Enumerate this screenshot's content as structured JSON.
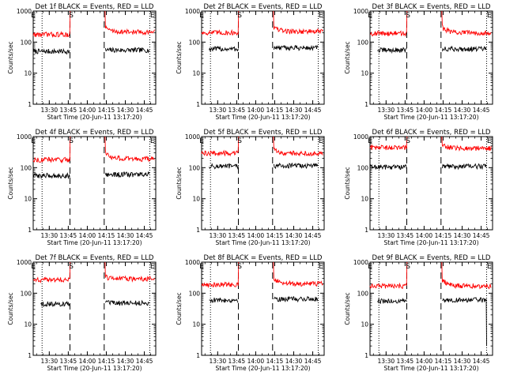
{
  "chart_data": [
    {
      "type": "line",
      "title": "Det 1f BLACK = Events, RED = LLD",
      "xlabel": "Start Time (20-Jun-11 13:17:20)",
      "ylabel": "Counts/sec",
      "yscale": "log",
      "ylim": [
        1,
        1000
      ],
      "y_ticks": [
        "1",
        "10",
        "100",
        "1000"
      ],
      "x_ticks": [
        "13:30",
        "13:45",
        "14:00",
        "14:15",
        "14:30",
        "14:45"
      ],
      "xlim": [
        "13:17:20",
        "14:54:00"
      ],
      "x_tick_minutes": [
        12.67,
        27.67,
        42.67,
        57.67,
        72.67,
        87.67
      ],
      "xlim_minutes": [
        0,
        96.67
      ],
      "markers": [
        {
          "label": "E",
          "minute": 0
        },
        {
          "label": "S",
          "minute": 30
        },
        {
          "label": "E",
          "minute": 94
        }
      ],
      "dotted_lines_minutes": [
        7,
        92
      ],
      "dashed_lines_minutes": [
        29,
        56
      ],
      "series": [
        {
          "name": "BLACK = Events",
          "color": "#000000",
          "segments": [
            {
              "x_start": 0,
              "x_end": 29,
              "level": 50,
              "spike_at_start": 10
            },
            {
              "x_start": 57,
              "x_end": 92,
              "level": 55
            }
          ]
        },
        {
          "name": "RED = LLD",
          "color": "#ff0000",
          "segments": [
            {
              "x_start": 0,
              "x_end": 29,
              "level": 175
            },
            {
              "x_start": 57,
              "x_end": 96,
              "level": 210,
              "start_level": 300
            }
          ]
        }
      ]
    },
    {
      "type": "line",
      "title": "Det 2f BLACK = Events, RED = LLD",
      "xlabel": "Start Time (20-Jun-11 13:17:20)",
      "ylabel": "Counts/sec",
      "yscale": "log",
      "ylim": [
        1,
        1000
      ],
      "y_ticks": [
        "1",
        "10",
        "100",
        "1000"
      ],
      "x_ticks": [
        "13:30",
        "13:45",
        "14:00",
        "14:15",
        "14:30",
        "14:45"
      ],
      "xlim": [
        "13:17:20",
        "14:54:00"
      ],
      "x_tick_minutes": [
        12.67,
        27.67,
        42.67,
        57.67,
        72.67,
        87.67
      ],
      "xlim_minutes": [
        0,
        96.67
      ],
      "markers": [
        {
          "label": "E",
          "minute": 0
        },
        {
          "label": "S",
          "minute": 30
        },
        {
          "label": "E",
          "minute": 94
        }
      ],
      "dotted_lines_minutes": [
        7,
        92
      ],
      "dashed_lines_minutes": [
        29,
        56
      ],
      "series": [
        {
          "name": "BLACK = Events",
          "color": "#000000",
          "segments": [
            {
              "x_start": 6,
              "x_end": 29,
              "level": 60
            },
            {
              "x_start": 57,
              "x_end": 92,
              "level": 65
            }
          ]
        },
        {
          "name": "RED = LLD",
          "color": "#ff0000",
          "segments": [
            {
              "x_start": 0,
              "x_end": 29,
              "level": 200
            },
            {
              "x_start": 57,
              "x_end": 96,
              "level": 220,
              "start_level": 300
            }
          ]
        }
      ]
    },
    {
      "type": "line",
      "title": "Det 3f BLACK = Events, RED = LLD",
      "xlabel": "Start Time (20-Jun-11 13:17:20)",
      "ylabel": "Counts/sec",
      "yscale": "log",
      "ylim": [
        1,
        1000
      ],
      "y_ticks": [
        "1",
        "10",
        "100",
        "1000"
      ],
      "x_ticks": [
        "13:30",
        "13:45",
        "14:00",
        "14:15",
        "14:30",
        "14:45"
      ],
      "xlim": [
        "13:17:20",
        "14:54:00"
      ],
      "x_tick_minutes": [
        12.67,
        27.67,
        42.67,
        57.67,
        72.67,
        87.67
      ],
      "xlim_minutes": [
        0,
        96.67
      ],
      "markers": [
        {
          "label": "E",
          "minute": 0
        },
        {
          "label": "S",
          "minute": 30
        },
        {
          "label": "E",
          "minute": 94
        }
      ],
      "dotted_lines_minutes": [
        7,
        92
      ],
      "dashed_lines_minutes": [
        29,
        56
      ],
      "series": [
        {
          "name": "BLACK = Events",
          "color": "#000000",
          "segments": [
            {
              "x_start": 6,
              "x_end": 29,
              "level": 55
            },
            {
              "x_start": 57,
              "x_end": 92,
              "level": 60
            }
          ]
        },
        {
          "name": "RED = LLD",
          "color": "#ff0000",
          "segments": [
            {
              "x_start": 0,
              "x_end": 29,
              "level": 190
            },
            {
              "x_start": 57,
              "x_end": 96,
              "level": 200,
              "start_level": 300
            }
          ]
        }
      ]
    },
    {
      "type": "line",
      "title": "Det 4f BLACK = Events, RED = LLD",
      "xlabel": "Start Time (20-Jun-11 13:17:20)",
      "ylabel": "Counts/sec",
      "yscale": "log",
      "ylim": [
        1,
        1000
      ],
      "y_ticks": [
        "1",
        "10",
        "100",
        "1000"
      ],
      "x_ticks": [
        "13:30",
        "13:45",
        "14:00",
        "14:15",
        "14:30",
        "14:45"
      ],
      "xlim": [
        "13:17:20",
        "14:54:00"
      ],
      "x_tick_minutes": [
        12.67,
        27.67,
        42.67,
        57.67,
        72.67,
        87.67
      ],
      "xlim_minutes": [
        0,
        96.67
      ],
      "markers": [
        {
          "label": "E",
          "minute": 0
        },
        {
          "label": "S",
          "minute": 30
        },
        {
          "label": "E",
          "minute": 94
        }
      ],
      "dotted_lines_minutes": [
        7,
        92
      ],
      "dashed_lines_minutes": [
        29,
        56
      ],
      "series": [
        {
          "name": "BLACK = Events",
          "color": "#000000",
          "segments": [
            {
              "x_start": 0,
              "x_end": 29,
              "level": 55,
              "spike_at_start": 10
            },
            {
              "x_start": 57,
              "x_end": 92,
              "level": 60
            }
          ]
        },
        {
          "name": "RED = LLD",
          "color": "#ff0000",
          "segments": [
            {
              "x_start": 0,
              "x_end": 29,
              "level": 180
            },
            {
              "x_start": 57,
              "x_end": 96,
              "level": 190,
              "start_level": 300
            }
          ]
        }
      ]
    },
    {
      "type": "line",
      "title": "Det 5f BLACK = Events, RED = LLD",
      "xlabel": "Start Time (20-Jun-11 13:17:20)",
      "ylabel": "Counts/sec",
      "yscale": "log",
      "ylim": [
        1,
        1000
      ],
      "y_ticks": [
        "1",
        "10",
        "100",
        "1000"
      ],
      "x_ticks": [
        "13:30",
        "13:45",
        "14:00",
        "14:15",
        "14:30",
        "14:45"
      ],
      "xlim": [
        "13:17:20",
        "14:54:00"
      ],
      "x_tick_minutes": [
        12.67,
        27.67,
        42.67,
        57.67,
        72.67,
        87.67
      ],
      "xlim_minutes": [
        0,
        96.67
      ],
      "markers": [
        {
          "label": "E",
          "minute": 0
        },
        {
          "label": "S",
          "minute": 30
        },
        {
          "label": "E",
          "minute": 94
        }
      ],
      "dotted_lines_minutes": [
        7,
        92
      ],
      "dashed_lines_minutes": [
        29,
        56
      ],
      "series": [
        {
          "name": "BLACK = Events",
          "color": "#000000",
          "segments": [
            {
              "x_start": 6,
              "x_end": 29,
              "level": 110
            },
            {
              "x_start": 57,
              "x_end": 92,
              "level": 115
            }
          ]
        },
        {
          "name": "RED = LLD",
          "color": "#ff0000",
          "segments": [
            {
              "x_start": 0,
              "x_end": 29,
              "level": 290
            },
            {
              "x_start": 57,
              "x_end": 96,
              "level": 290,
              "start_level": 380
            }
          ]
        }
      ]
    },
    {
      "type": "line",
      "title": "Det 6f BLACK = Events, RED = LLD",
      "xlabel": "Start Time (20-Jun-11 13:17:20)",
      "ylabel": "Counts/sec",
      "yscale": "log",
      "ylim": [
        1,
        1000
      ],
      "y_ticks": [
        "1",
        "10",
        "100",
        "1000"
      ],
      "x_ticks": [
        "13:30",
        "13:45",
        "14:00",
        "14:15",
        "14:30",
        "14:45"
      ],
      "xlim": [
        "13:17:20",
        "14:54:00"
      ],
      "x_tick_minutes": [
        12.67,
        27.67,
        42.67,
        57.67,
        72.67,
        87.67
      ],
      "xlim_minutes": [
        0,
        96.67
      ],
      "markers": [
        {
          "label": "E",
          "minute": 0
        },
        {
          "label": "S",
          "minute": 30
        },
        {
          "label": "E",
          "minute": 94
        }
      ],
      "dotted_lines_minutes": [
        7,
        92
      ],
      "dashed_lines_minutes": [
        29,
        56
      ],
      "series": [
        {
          "name": "BLACK = Events",
          "color": "#000000",
          "segments": [
            {
              "x_start": 0,
              "x_end": 29,
              "level": 105,
              "spike_at_start": 2
            },
            {
              "x_start": 57,
              "x_end": 92,
              "level": 110
            }
          ]
        },
        {
          "name": "RED = LLD",
          "color": "#ff0000",
          "segments": [
            {
              "x_start": 0,
              "x_end": 29,
              "level": 440
            },
            {
              "x_start": 57,
              "x_end": 96,
              "level": 420,
              "start_level": 520
            }
          ]
        }
      ]
    },
    {
      "type": "line",
      "title": "Det 7f BLACK = Events, RED = LLD",
      "xlabel": "Start Time (20-Jun-11 13:17:20)",
      "ylabel": "Counts/sec",
      "yscale": "log",
      "ylim": [
        1,
        1000
      ],
      "y_ticks": [
        "1",
        "10",
        "100",
        "1000"
      ],
      "x_ticks": [
        "13:30",
        "13:45",
        "14:00",
        "14:15",
        "14:30",
        "14:45"
      ],
      "xlim": [
        "13:17:20",
        "14:54:00"
      ],
      "x_tick_minutes": [
        12.67,
        27.67,
        42.67,
        57.67,
        72.67,
        87.67
      ],
      "xlim_minutes": [
        0,
        96.67
      ],
      "markers": [
        {
          "label": "E",
          "minute": 0
        },
        {
          "label": "S",
          "minute": 30
        },
        {
          "label": "E",
          "minute": 94
        }
      ],
      "dotted_lines_minutes": [
        7,
        92
      ],
      "dashed_lines_minutes": [
        29,
        56
      ],
      "series": [
        {
          "name": "BLACK = Events",
          "color": "#000000",
          "segments": [
            {
              "x_start": 6,
              "x_end": 29,
              "level": 45
            },
            {
              "x_start": 57,
              "x_end": 92,
              "level": 48
            }
          ]
        },
        {
          "name": "RED = LLD",
          "color": "#ff0000",
          "segments": [
            {
              "x_start": 0,
              "x_end": 29,
              "level": 270
            },
            {
              "x_start": 57,
              "x_end": 96,
              "level": 290,
              "start_level": 330
            }
          ]
        }
      ]
    },
    {
      "type": "line",
      "title": "Det 8f BLACK = Events, RED = LLD",
      "xlabel": "Start Time (20-Jun-11 13:17:20)",
      "ylabel": "Counts/sec",
      "yscale": "log",
      "ylim": [
        1,
        1000
      ],
      "y_ticks": [
        "1",
        "10",
        "100",
        "1000"
      ],
      "x_ticks": [
        "13:30",
        "13:45",
        "14:00",
        "14:15",
        "14:30",
        "14:45"
      ],
      "xlim": [
        "13:17:20",
        "14:54:00"
      ],
      "x_tick_minutes": [
        12.67,
        27.67,
        42.67,
        57.67,
        72.67,
        87.67
      ],
      "xlim_minutes": [
        0,
        96.67
      ],
      "markers": [
        {
          "label": "E",
          "minute": 0
        },
        {
          "label": "S",
          "minute": 30
        },
        {
          "label": "E",
          "minute": 94
        }
      ],
      "dotted_lines_minutes": [
        7,
        92
      ],
      "dashed_lines_minutes": [
        29,
        56
      ],
      "series": [
        {
          "name": "BLACK = Events",
          "color": "#000000",
          "segments": [
            {
              "x_start": 6,
              "x_end": 29,
              "level": 60
            },
            {
              "x_start": 57,
              "x_end": 92,
              "level": 65
            }
          ]
        },
        {
          "name": "RED = LLD",
          "color": "#ff0000",
          "segments": [
            {
              "x_start": 0,
              "x_end": 29,
              "level": 190
            },
            {
              "x_start": 57,
              "x_end": 96,
              "level": 200,
              "start_level": 290
            }
          ]
        }
      ]
    },
    {
      "type": "line",
      "title": "Det 9f BLACK = Events, RED = LLD",
      "xlabel": "Start Time (20-Jun-11 13:17:20)",
      "ylabel": "Counts/sec",
      "yscale": "log",
      "ylim": [
        1,
        1000
      ],
      "y_ticks": [
        "1",
        "10",
        "100",
        "1000"
      ],
      "x_ticks": [
        "13:30",
        "13:45",
        "14:00",
        "14:15",
        "14:30",
        "14:45"
      ],
      "xlim": [
        "13:17:20",
        "14:54:00"
      ],
      "x_tick_minutes": [
        12.67,
        27.67,
        42.67,
        57.67,
        72.67,
        87.67
      ],
      "xlim_minutes": [
        0,
        96.67
      ],
      "markers": [
        {
          "label": "E",
          "minute": 0
        },
        {
          "label": "S",
          "minute": 30
        },
        {
          "label": "E",
          "minute": 94
        }
      ],
      "dotted_lines_minutes": [
        7,
        92
      ],
      "dashed_lines_minutes": [
        29,
        56
      ],
      "series": [
        {
          "name": "BLACK = Events",
          "color": "#000000",
          "segments": [
            {
              "x_start": 6,
              "x_end": 29,
              "level": 55
            },
            {
              "x_start": 57,
              "x_end": 92,
              "level": 60,
              "spike_at_end": 2
            }
          ]
        },
        {
          "name": "RED = LLD",
          "color": "#ff0000",
          "segments": [
            {
              "x_start": 0,
              "x_end": 29,
              "level": 170
            },
            {
              "x_start": 57,
              "x_end": 96,
              "level": 170,
              "start_level": 260
            }
          ]
        }
      ]
    }
  ]
}
